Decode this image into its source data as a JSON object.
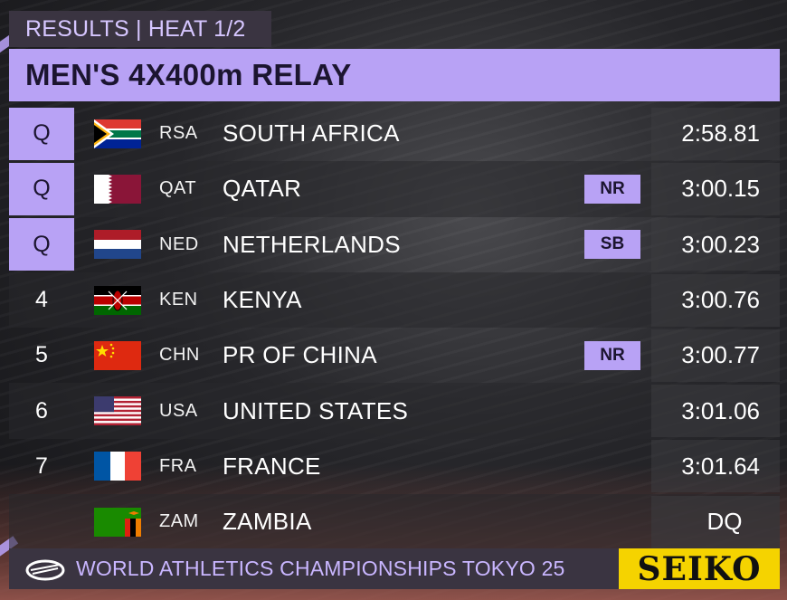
{
  "header": {
    "tag": "RESULTS | HEAT 1/2",
    "title": "MEN'S 4X400m RELAY"
  },
  "results": [
    {
      "rank": "Q",
      "qualified": true,
      "code": "RSA",
      "country": "SOUTH AFRICA",
      "badge": "",
      "time": "2:58.81",
      "flag": "rsa-flag"
    },
    {
      "rank": "Q",
      "qualified": true,
      "code": "QAT",
      "country": "QATAR",
      "badge": "NR",
      "time": "3:00.15",
      "flag": "qat-flag"
    },
    {
      "rank": "Q",
      "qualified": true,
      "code": "NED",
      "country": "NETHERLANDS",
      "badge": "SB",
      "time": "3:00.23",
      "flag": "ned-flag"
    },
    {
      "rank": "4",
      "qualified": false,
      "code": "KEN",
      "country": "KENYA",
      "badge": "",
      "time": "3:00.76",
      "flag": "ken-flag"
    },
    {
      "rank": "5",
      "qualified": false,
      "code": "CHN",
      "country": "PR OF CHINA",
      "badge": "NR",
      "time": "3:00.77",
      "flag": "chn-flag"
    },
    {
      "rank": "6",
      "qualified": false,
      "code": "USA",
      "country": "UNITED STATES",
      "badge": "",
      "time": "3:01.06",
      "flag": "usa-flag"
    },
    {
      "rank": "7",
      "qualified": false,
      "code": "FRA",
      "country": "FRANCE",
      "badge": "",
      "time": "3:01.64",
      "flag": "fra-flag"
    },
    {
      "rank": "",
      "qualified": false,
      "code": "ZAM",
      "country": "ZAMBIA",
      "badge": "",
      "time": "DQ",
      "flag": "zam-flag"
    }
  ],
  "footer": {
    "event": "WORLD ATHLETICS CHAMPIONSHIPS TOKYO 25",
    "sponsor": "SEIKO",
    "logo_icon": "world-athletics-logo-icon"
  },
  "colors": {
    "accent_purple": "#b8a2f5",
    "dark_panel": "#3a3441",
    "sponsor_yellow": "#f5d300"
  }
}
